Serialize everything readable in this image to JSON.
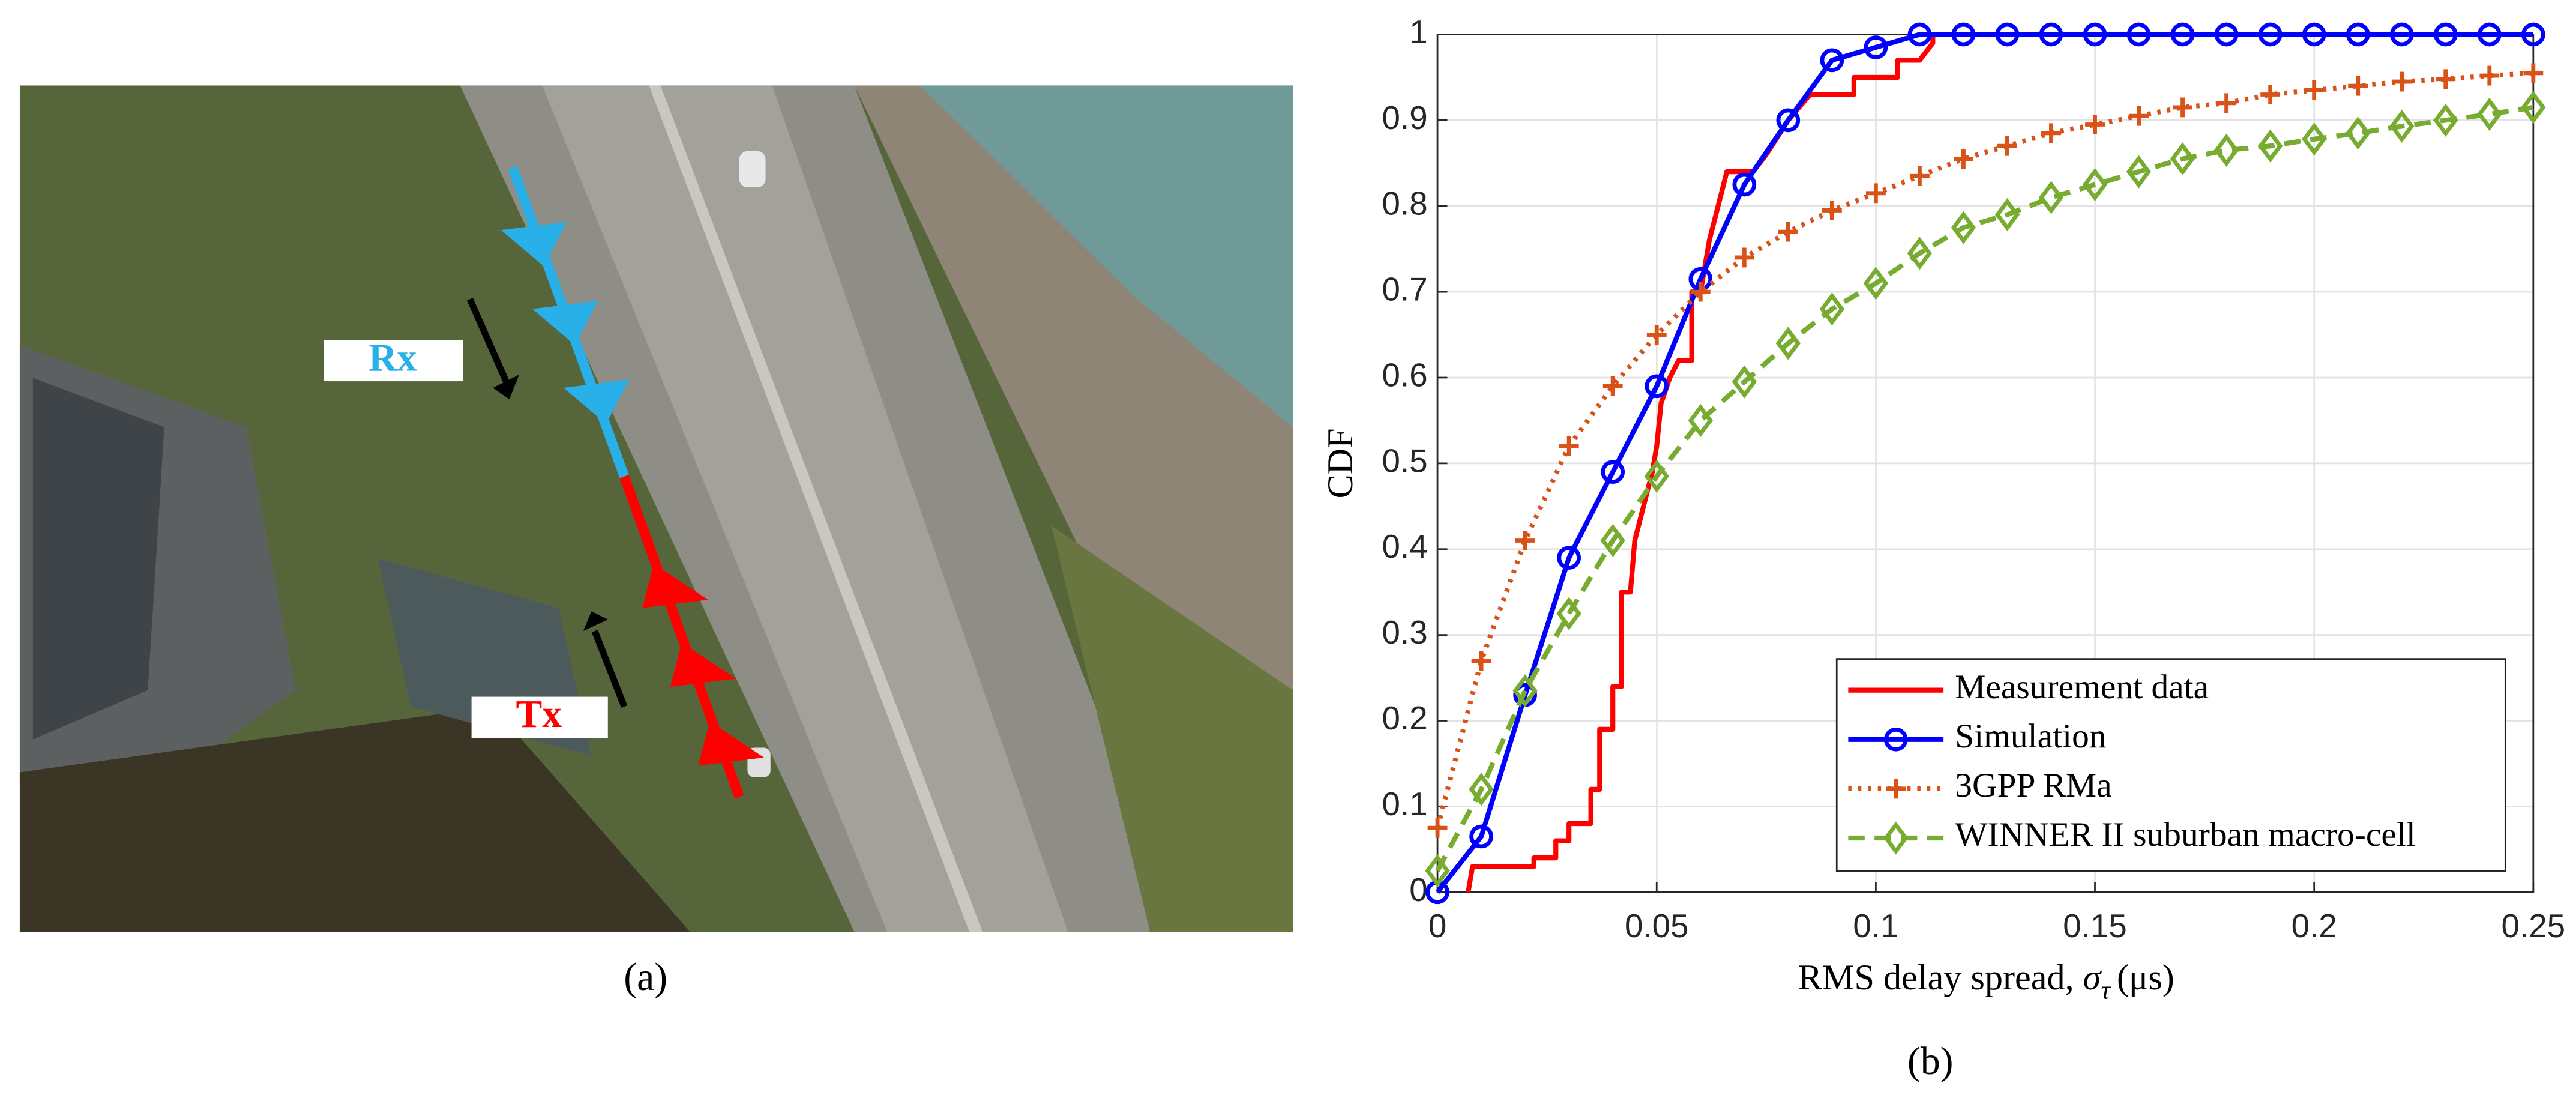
{
  "figure_a": {
    "rx_label": "Rx",
    "tx_label": "Tx",
    "caption": "(a)"
  },
  "chart_data": {
    "type": "line",
    "caption": "(b)",
    "xlabel": {
      "text": "RMS delay spread, ",
      "symbol": "σ",
      "subscript": "τ",
      "unit": "(μs)"
    },
    "ylabel": "CDF",
    "xlim": [
      0,
      0.25
    ],
    "xticks": [
      0,
      0.05,
      0.1,
      0.15,
      0.2,
      0.25
    ],
    "ylim": [
      0,
      1
    ],
    "yticks": [
      0,
      0.1,
      0.2,
      0.3,
      0.4,
      0.5,
      0.6,
      0.7,
      0.8,
      0.9,
      1
    ],
    "grid": true,
    "legend": "southeast",
    "series": [
      {
        "name": "Measurement data",
        "color": "#ff0000",
        "line_style": "-",
        "marker": "none",
        "x": [
          0.007,
          0.008,
          0.022,
          0.022,
          0.027,
          0.027,
          0.03,
          0.03,
          0.035,
          0.035,
          0.037,
          0.037,
          0.04,
          0.04,
          0.042,
          0.042,
          0.044,
          0.045,
          0.047,
          0.049,
          0.05,
          0.051,
          0.053,
          0.055,
          0.058,
          0.058,
          0.06,
          0.062,
          0.064,
          0.066,
          0.072,
          0.075,
          0.08,
          0.085,
          0.095,
          0.095,
          0.105,
          0.105,
          0.11,
          0.113,
          0.113,
          0.25
        ],
        "values": [
          0,
          0.03,
          0.03,
          0.04,
          0.04,
          0.06,
          0.06,
          0.08,
          0.08,
          0.12,
          0.12,
          0.19,
          0.19,
          0.24,
          0.24,
          0.35,
          0.35,
          0.41,
          0.45,
          0.49,
          0.52,
          0.57,
          0.6,
          0.62,
          0.62,
          0.7,
          0.7,
          0.76,
          0.8,
          0.84,
          0.84,
          0.86,
          0.9,
          0.93,
          0.93,
          0.95,
          0.95,
          0.97,
          0.97,
          0.99,
          1,
          1
        ]
      },
      {
        "name": "Simulation",
        "color": "#0000ff",
        "line_style": "-",
        "marker": "o",
        "x": [
          0,
          0.01,
          0.02,
          0.03,
          0.04,
          0.05,
          0.06,
          0.07,
          0.08,
          0.09,
          0.1,
          0.11,
          0.12,
          0.13,
          0.14,
          0.15,
          0.16,
          0.17,
          0.18,
          0.19,
          0.2,
          0.21,
          0.22,
          0.23,
          0.24,
          0.25
        ],
        "values": [
          0,
          0.065,
          0.23,
          0.39,
          0.49,
          0.59,
          0.715,
          0.825,
          0.9,
          0.97,
          0.985,
          1,
          1,
          1,
          1,
          1,
          1,
          1,
          1,
          1,
          1,
          1,
          1,
          1,
          1,
          1
        ]
      },
      {
        "name": "3GPP RMa",
        "color": "#d95319",
        "line_style": ":",
        "marker": "+",
        "x": [
          0,
          0.01,
          0.02,
          0.03,
          0.04,
          0.05,
          0.06,
          0.07,
          0.08,
          0.09,
          0.1,
          0.11,
          0.12,
          0.13,
          0.14,
          0.15,
          0.16,
          0.17,
          0.18,
          0.19,
          0.2,
          0.21,
          0.22,
          0.23,
          0.24,
          0.25
        ],
        "values": [
          0.075,
          0.27,
          0.41,
          0.52,
          0.59,
          0.65,
          0.7,
          0.74,
          0.77,
          0.795,
          0.815,
          0.835,
          0.855,
          0.87,
          0.885,
          0.895,
          0.905,
          0.915,
          0.92,
          0.93,
          0.935,
          0.94,
          0.945,
          0.948,
          0.952,
          0.955
        ]
      },
      {
        "name": "WINNER II suburban macro-cell",
        "color": "#77ac30",
        "line_style": "--",
        "marker": "d",
        "x": [
          0,
          0.01,
          0.02,
          0.03,
          0.04,
          0.05,
          0.06,
          0.07,
          0.08,
          0.09,
          0.1,
          0.11,
          0.12,
          0.13,
          0.14,
          0.15,
          0.16,
          0.17,
          0.18,
          0.19,
          0.2,
          0.21,
          0.22,
          0.23,
          0.24,
          0.25
        ],
        "values": [
          0.025,
          0.12,
          0.235,
          0.325,
          0.41,
          0.485,
          0.55,
          0.595,
          0.64,
          0.68,
          0.71,
          0.745,
          0.775,
          0.79,
          0.81,
          0.825,
          0.84,
          0.855,
          0.865,
          0.87,
          0.878,
          0.885,
          0.893,
          0.9,
          0.907,
          0.915
        ]
      }
    ]
  }
}
